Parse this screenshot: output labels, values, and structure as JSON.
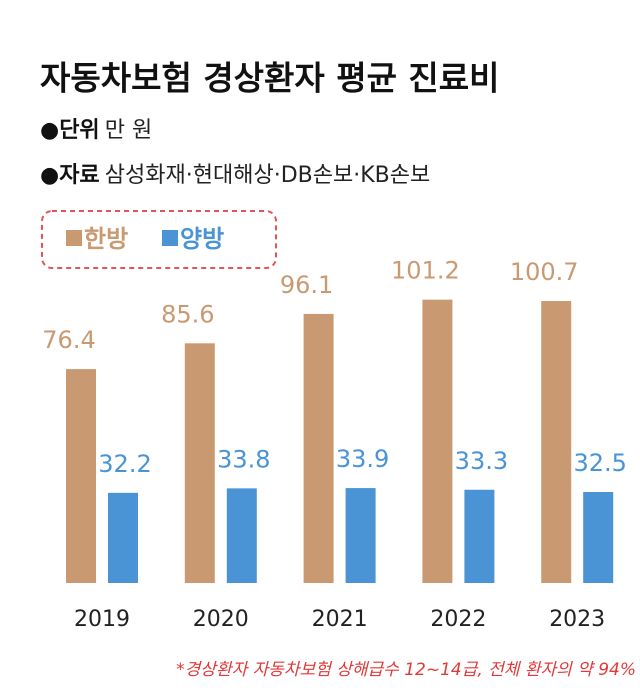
{
  "chart_data": {
    "type": "bar",
    "title": "자동차보험 경상환자 평균 진료비",
    "notes": [
      {
        "label": "●단위",
        "text": "만 원"
      },
      {
        "label": "●자료",
        "text": "삼성화재·현대해상·DB손보·KB손보"
      }
    ],
    "categories": [
      "2019",
      "2020",
      "2021",
      "2022",
      "2023"
    ],
    "series": [
      {
        "name": "한방",
        "color": "#c99a71",
        "values": [
          76.4,
          85.6,
          96.1,
          101.2,
          100.7
        ]
      },
      {
        "name": "양방",
        "color": "#4a94d6",
        "values": [
          32.2,
          33.8,
          33.9,
          33.3,
          32.5
        ]
      }
    ],
    "ylim": [
      0,
      120
    ],
    "legend": "upper left",
    "footnote": "*경상환자 자동차보험 상해급수 12~14급, 전체 환자의 약 94%"
  }
}
